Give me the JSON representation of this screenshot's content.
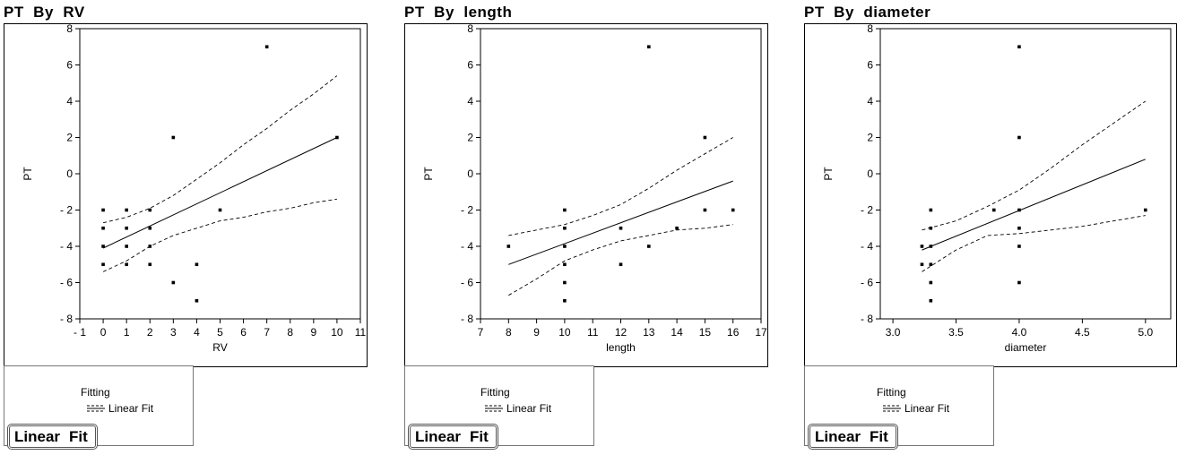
{
  "chart_data": [
    {
      "type": "scatter",
      "title": "PT  By  RV",
      "xlabel": "RV",
      "ylabel": "PT",
      "xlim": [
        -1,
        11
      ],
      "ylim": [
        -8,
        8
      ],
      "xticks": [
        -1,
        0,
        1,
        2,
        3,
        4,
        5,
        6,
        7,
        8,
        9,
        10,
        11
      ],
      "yticks": [
        -8,
        -6,
        -4,
        -2,
        0,
        2,
        4,
        6,
        8
      ],
      "xtick_labels": [
        "- 1",
        "0",
        "1",
        "2",
        "3",
        "4",
        "5",
        "6",
        "7",
        "8",
        "9",
        "10",
        "11"
      ],
      "ytick_labels": [
        "- 8",
        "- 6",
        "- 4",
        "- 2",
        "0",
        "2",
        "4",
        "6",
        "8"
      ],
      "points": [
        [
          0,
          -2
        ],
        [
          0,
          -3
        ],
        [
          0,
          -4
        ],
        [
          0,
          -5
        ],
        [
          1,
          -2
        ],
        [
          1,
          -3
        ],
        [
          1,
          -4
        ],
        [
          1,
          -5
        ],
        [
          2,
          -2
        ],
        [
          2,
          -3
        ],
        [
          2,
          -4
        ],
        [
          2,
          -5
        ],
        [
          3,
          2
        ],
        [
          3,
          -6
        ],
        [
          4,
          -5
        ],
        [
          4,
          -7
        ],
        [
          5,
          -2
        ],
        [
          7,
          7
        ],
        [
          10,
          2
        ]
      ],
      "fit_line": [
        [
          0,
          -4.1
        ],
        [
          10,
          2.0
        ]
      ],
      "ci_upper": [
        [
          0,
          -2.7
        ],
        [
          1,
          -2.4
        ],
        [
          2,
          -1.9
        ],
        [
          3,
          -1.2
        ],
        [
          4,
          -0.3
        ],
        [
          5,
          0.6
        ],
        [
          6,
          1.6
        ],
        [
          7,
          2.5
        ],
        [
          8,
          3.5
        ],
        [
          9,
          4.4
        ],
        [
          10,
          5.4
        ]
      ],
      "ci_lower": [
        [
          0,
          -5.4
        ],
        [
          1,
          -4.8
        ],
        [
          2,
          -4.0
        ],
        [
          3,
          -3.4
        ],
        [
          4,
          -3.0
        ],
        [
          5,
          -2.6
        ],
        [
          6,
          -2.4
        ],
        [
          7,
          -2.1
        ],
        [
          8,
          -1.9
        ],
        [
          9,
          -1.6
        ],
        [
          10,
          -1.4
        ]
      ],
      "grid": false
    },
    {
      "type": "scatter",
      "title": "PT  By  length",
      "xlabel": "length",
      "ylabel": "PT",
      "xlim": [
        7,
        17
      ],
      "ylim": [
        -8,
        8
      ],
      "xticks": [
        7,
        8,
        9,
        10,
        11,
        12,
        13,
        14,
        15,
        16,
        17
      ],
      "yticks": [
        -8,
        -6,
        -4,
        -2,
        0,
        2,
        4,
        6,
        8
      ],
      "xtick_labels": [
        "7",
        "8",
        "9",
        "10",
        "11",
        "12",
        "13",
        "14",
        "15",
        "16",
        "17"
      ],
      "ytick_labels": [
        "- 8",
        "- 6",
        "- 4",
        "- 2",
        "0",
        "2",
        "4",
        "6",
        "8"
      ],
      "points": [
        [
          8,
          -4
        ],
        [
          10,
          -2
        ],
        [
          10,
          -3
        ],
        [
          10,
          -4
        ],
        [
          10,
          -5
        ],
        [
          10,
          -6
        ],
        [
          10,
          -7
        ],
        [
          12,
          -3
        ],
        [
          12,
          -5
        ],
        [
          13,
          7
        ],
        [
          13,
          -4
        ],
        [
          14,
          -3
        ],
        [
          15,
          2
        ],
        [
          15,
          -2
        ],
        [
          16,
          -2
        ]
      ],
      "fit_line": [
        [
          8,
          -5.0
        ],
        [
          16,
          -0.4
        ]
      ],
      "ci_upper": [
        [
          8,
          -3.4
        ],
        [
          9,
          -3.1
        ],
        [
          10,
          -2.8
        ],
        [
          11,
          -2.3
        ],
        [
          12,
          -1.7
        ],
        [
          13,
          -0.8
        ],
        [
          14,
          0.2
        ],
        [
          15,
          1.1
        ],
        [
          16,
          2.0
        ]
      ],
      "ci_lower": [
        [
          8,
          -6.7
        ],
        [
          9,
          -5.8
        ],
        [
          10,
          -4.8
        ],
        [
          11,
          -4.2
        ],
        [
          12,
          -3.7
        ],
        [
          13,
          -3.4
        ],
        [
          14,
          -3.1
        ],
        [
          15,
          -3.0
        ],
        [
          16,
          -2.8
        ]
      ],
      "grid": false
    },
    {
      "type": "scatter",
      "title": "PT  By  diameter",
      "xlabel": "diameter",
      "ylabel": "PT",
      "xlim": [
        2.9,
        5.2
      ],
      "ylim": [
        -8,
        8
      ],
      "xticks": [
        3.0,
        3.5,
        4.0,
        4.5,
        5.0
      ],
      "yticks": [
        -8,
        -6,
        -4,
        -2,
        0,
        2,
        4,
        6,
        8
      ],
      "xtick_labels": [
        "3.0",
        "3.5",
        "4.0",
        "4.5",
        "5.0"
      ],
      "ytick_labels": [
        "- 8",
        "- 6",
        "- 4",
        "- 2",
        "0",
        "2",
        "4",
        "6",
        "8"
      ],
      "points": [
        [
          3.23,
          -4
        ],
        [
          3.23,
          -5
        ],
        [
          3.3,
          -2
        ],
        [
          3.3,
          -3
        ],
        [
          3.3,
          -4
        ],
        [
          3.3,
          -5
        ],
        [
          3.3,
          -6
        ],
        [
          3.3,
          -7
        ],
        [
          3.8,
          -2
        ],
        [
          4.0,
          7
        ],
        [
          4.0,
          2
        ],
        [
          4.0,
          -2
        ],
        [
          4.0,
          -3
        ],
        [
          4.0,
          -4
        ],
        [
          4.0,
          -6
        ],
        [
          5.0,
          -2
        ]
      ],
      "fit_line": [
        [
          3.23,
          -4.2
        ],
        [
          5.0,
          0.8
        ]
      ],
      "ci_upper": [
        [
          3.23,
          -3.1
        ],
        [
          3.5,
          -2.6
        ],
        [
          3.75,
          -1.8
        ],
        [
          4.0,
          -0.9
        ],
        [
          4.25,
          0.3
        ],
        [
          4.5,
          1.6
        ],
        [
          4.75,
          2.8
        ],
        [
          5.0,
          4.0
        ]
      ],
      "ci_lower": [
        [
          3.23,
          -5.4
        ],
        [
          3.5,
          -4.2
        ],
        [
          3.75,
          -3.4
        ],
        [
          4.0,
          -3.3
        ],
        [
          4.25,
          -3.1
        ],
        [
          4.5,
          -2.9
        ],
        [
          4.75,
          -2.6
        ],
        [
          5.0,
          -2.3
        ]
      ],
      "grid": false
    }
  ],
  "panels": [
    {
      "fitting_label": "Fitting",
      "legend_label": "Linear Fit",
      "button_word1": "Linear",
      "button_word2": "Fit"
    },
    {
      "fitting_label": "Fitting",
      "legend_label": "Linear Fit",
      "button_word1": "Linear",
      "button_word2": "Fit"
    },
    {
      "fitting_label": "Fitting",
      "legend_label": "Linear Fit",
      "button_word1": "Linear",
      "button_word2": "Fit"
    }
  ],
  "colors": {
    "ink": "#000000",
    "frame_border": "#777777",
    "background": "#ffffff"
  }
}
